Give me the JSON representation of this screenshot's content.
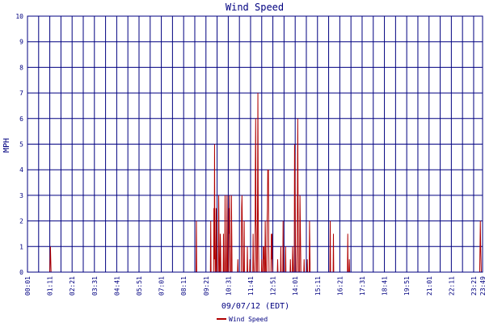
{
  "chart_data": {
    "type": "line",
    "title": "Wind Speed",
    "xlabel": "09/07/12 (EDT)",
    "ylabel": "MPH",
    "ylim": [
      0,
      10
    ],
    "yticks": [
      "0",
      "1",
      "2",
      "3",
      "4",
      "5",
      "6",
      "7",
      "8",
      "9",
      "10"
    ],
    "xticks": [
      "00:01",
      "01:11",
      "02:21",
      "03:31",
      "04:41",
      "05:51",
      "07:01",
      "08:11",
      "09:21",
      "10:31",
      "11:41",
      "12:51",
      "14:01",
      "15:11",
      "16:21",
      "17:31",
      "18:41",
      "19:51",
      "21:01",
      "22:11",
      "23:21",
      "23:49"
    ],
    "grid": true,
    "legend_position": "bottom-center",
    "series": [
      {
        "name": "Wind Speed",
        "color": "#b00000",
        "points": [
          [
            "01:11",
            0
          ],
          [
            "01:12",
            0.5
          ],
          [
            "01:13",
            1
          ],
          [
            "01:14",
            0.5
          ],
          [
            "01:15",
            0
          ],
          [
            "08:50",
            0
          ],
          [
            "08:51",
            2
          ],
          [
            "08:52",
            0
          ],
          [
            "09:35",
            0
          ],
          [
            "09:36",
            2
          ],
          [
            "09:37",
            0
          ],
          [
            "09:45",
            0
          ],
          [
            "09:46",
            2.5
          ],
          [
            "09:47",
            0.5
          ],
          [
            "09:48",
            5
          ],
          [
            "09:49",
            1.5
          ],
          [
            "09:50",
            0
          ],
          [
            "09:52",
            0
          ],
          [
            "09:53",
            2.5
          ],
          [
            "09:54",
            1.5
          ],
          [
            "09:55",
            0
          ],
          [
            "10:00",
            0
          ],
          [
            "10:01",
            3
          ],
          [
            "10:02",
            1.5
          ],
          [
            "10:03",
            0
          ],
          [
            "10:05",
            0
          ],
          [
            "10:06",
            1.5
          ],
          [
            "10:07",
            1
          ],
          [
            "10:08",
            0
          ],
          [
            "10:15",
            0
          ],
          [
            "10:16",
            1.5
          ],
          [
            "10:17",
            0
          ],
          [
            "10:20",
            0
          ],
          [
            "10:21",
            3
          ],
          [
            "10:22",
            1
          ],
          [
            "10:23",
            0
          ],
          [
            "10:26",
            0
          ],
          [
            "10:27",
            3
          ],
          [
            "10:28",
            1.5
          ],
          [
            "10:29",
            0
          ],
          [
            "10:32",
            0
          ],
          [
            "10:33",
            2.5
          ],
          [
            "10:34",
            1.5
          ],
          [
            "10:35",
            3
          ],
          [
            "10:36",
            1
          ],
          [
            "10:37",
            0
          ],
          [
            "10:40",
            0
          ],
          [
            "10:41",
            3
          ],
          [
            "10:42",
            1.5
          ],
          [
            "10:43",
            0
          ],
          [
            "11:00",
            0
          ],
          [
            "11:01",
            0.5
          ],
          [
            "11:02",
            0
          ],
          [
            "11:12",
            0
          ],
          [
            "11:13",
            2.5
          ],
          [
            "11:14",
            3
          ],
          [
            "11:15",
            2
          ],
          [
            "11:16",
            1
          ],
          [
            "11:17",
            0
          ],
          [
            "11:20",
            0
          ],
          [
            "11:21",
            2
          ],
          [
            "11:22",
            0
          ],
          [
            "11:30",
            0
          ],
          [
            "11:31",
            1
          ],
          [
            "11:32",
            0
          ],
          [
            "11:38",
            0
          ],
          [
            "11:39",
            0.5
          ],
          [
            "11:40",
            0
          ],
          [
            "11:48",
            0
          ],
          [
            "11:49",
            1.5
          ],
          [
            "11:50",
            0.5
          ],
          [
            "11:51",
            0
          ],
          [
            "11:55",
            0
          ],
          [
            "11:56",
            4
          ],
          [
            "11:57",
            6
          ],
          [
            "11:58",
            2
          ],
          [
            "11:59",
            1.5
          ],
          [
            "12:00",
            0
          ],
          [
            "12:02",
            0
          ],
          [
            "12:03",
            3.5
          ],
          [
            "12:04",
            7
          ],
          [
            "12:05",
            2.5
          ],
          [
            "12:06",
            1
          ],
          [
            "12:07",
            0
          ],
          [
            "12:15",
            0
          ],
          [
            "12:16",
            0.5
          ],
          [
            "12:17",
            0
          ],
          [
            "12:20",
            0
          ],
          [
            "12:21",
            1
          ],
          [
            "12:22",
            0.5
          ],
          [
            "12:23",
            1
          ],
          [
            "12:24",
            0
          ],
          [
            "12:26",
            0
          ],
          [
            "12:27",
            2
          ],
          [
            "12:28",
            1
          ],
          [
            "12:29",
            0
          ],
          [
            "12:32",
            0
          ],
          [
            "12:33",
            2
          ],
          [
            "12:34",
            2.5
          ],
          [
            "12:35",
            4
          ],
          [
            "12:36",
            3.5
          ],
          [
            "12:37",
            4
          ],
          [
            "12:38",
            1
          ],
          [
            "12:39",
            0
          ],
          [
            "12:45",
            0
          ],
          [
            "12:46",
            1.5
          ],
          [
            "12:47",
            0.5
          ],
          [
            "12:48",
            1.5
          ],
          [
            "12:49",
            0.5
          ],
          [
            "12:50",
            0
          ],
          [
            "13:05",
            0
          ],
          [
            "13:06",
            0.5
          ],
          [
            "13:07",
            0
          ],
          [
            "13:15",
            0
          ],
          [
            "13:16",
            1
          ],
          [
            "13:17",
            0
          ],
          [
            "13:22",
            0
          ],
          [
            "13:23",
            2
          ],
          [
            "13:24",
            0
          ],
          [
            "13:30",
            0
          ],
          [
            "13:31",
            1
          ],
          [
            "13:32",
            0
          ],
          [
            "13:45",
            0
          ],
          [
            "13:46",
            0.5
          ],
          [
            "13:47",
            0
          ],
          [
            "13:52",
            0
          ],
          [
            "13:53",
            1
          ],
          [
            "13:54",
            0.5
          ],
          [
            "13:55",
            0
          ],
          [
            "13:58",
            0
          ],
          [
            "13:59",
            5
          ],
          [
            "14:00",
            4.5
          ],
          [
            "14:01",
            2.5
          ],
          [
            "14:02",
            1
          ],
          [
            "14:03",
            0
          ],
          [
            "14:07",
            0
          ],
          [
            "14:08",
            3
          ],
          [
            "14:09",
            6
          ],
          [
            "14:10",
            3
          ],
          [
            "14:11",
            1
          ],
          [
            "14:12",
            0
          ],
          [
            "14:15",
            0
          ],
          [
            "14:16",
            3
          ],
          [
            "14:17",
            2
          ],
          [
            "14:18",
            1
          ],
          [
            "14:19",
            0
          ],
          [
            "14:28",
            0
          ],
          [
            "14:29",
            0.5
          ],
          [
            "14:30",
            0
          ],
          [
            "14:38",
            0
          ],
          [
            "14:39",
            0.5
          ],
          [
            "14:40",
            0
          ],
          [
            "14:45",
            0
          ],
          [
            "14:46",
            2
          ],
          [
            "14:47",
            1
          ],
          [
            "14:48",
            0
          ],
          [
            "15:50",
            0
          ],
          [
            "15:51",
            2
          ],
          [
            "15:52",
            0
          ],
          [
            "16:00",
            0
          ],
          [
            "16:01",
            1.5
          ],
          [
            "16:02",
            0
          ],
          [
            "16:45",
            0
          ],
          [
            "16:46",
            1.5
          ],
          [
            "16:47",
            0
          ],
          [
            "16:50",
            0
          ],
          [
            "16:51",
            0.5
          ],
          [
            "16:52",
            0
          ],
          [
            "23:40",
            0
          ],
          [
            "23:41",
            1
          ],
          [
            "23:42",
            2
          ],
          [
            "23:43",
            1
          ],
          [
            "23:44",
            0.5
          ],
          [
            "23:45",
            0
          ]
        ]
      }
    ]
  }
}
